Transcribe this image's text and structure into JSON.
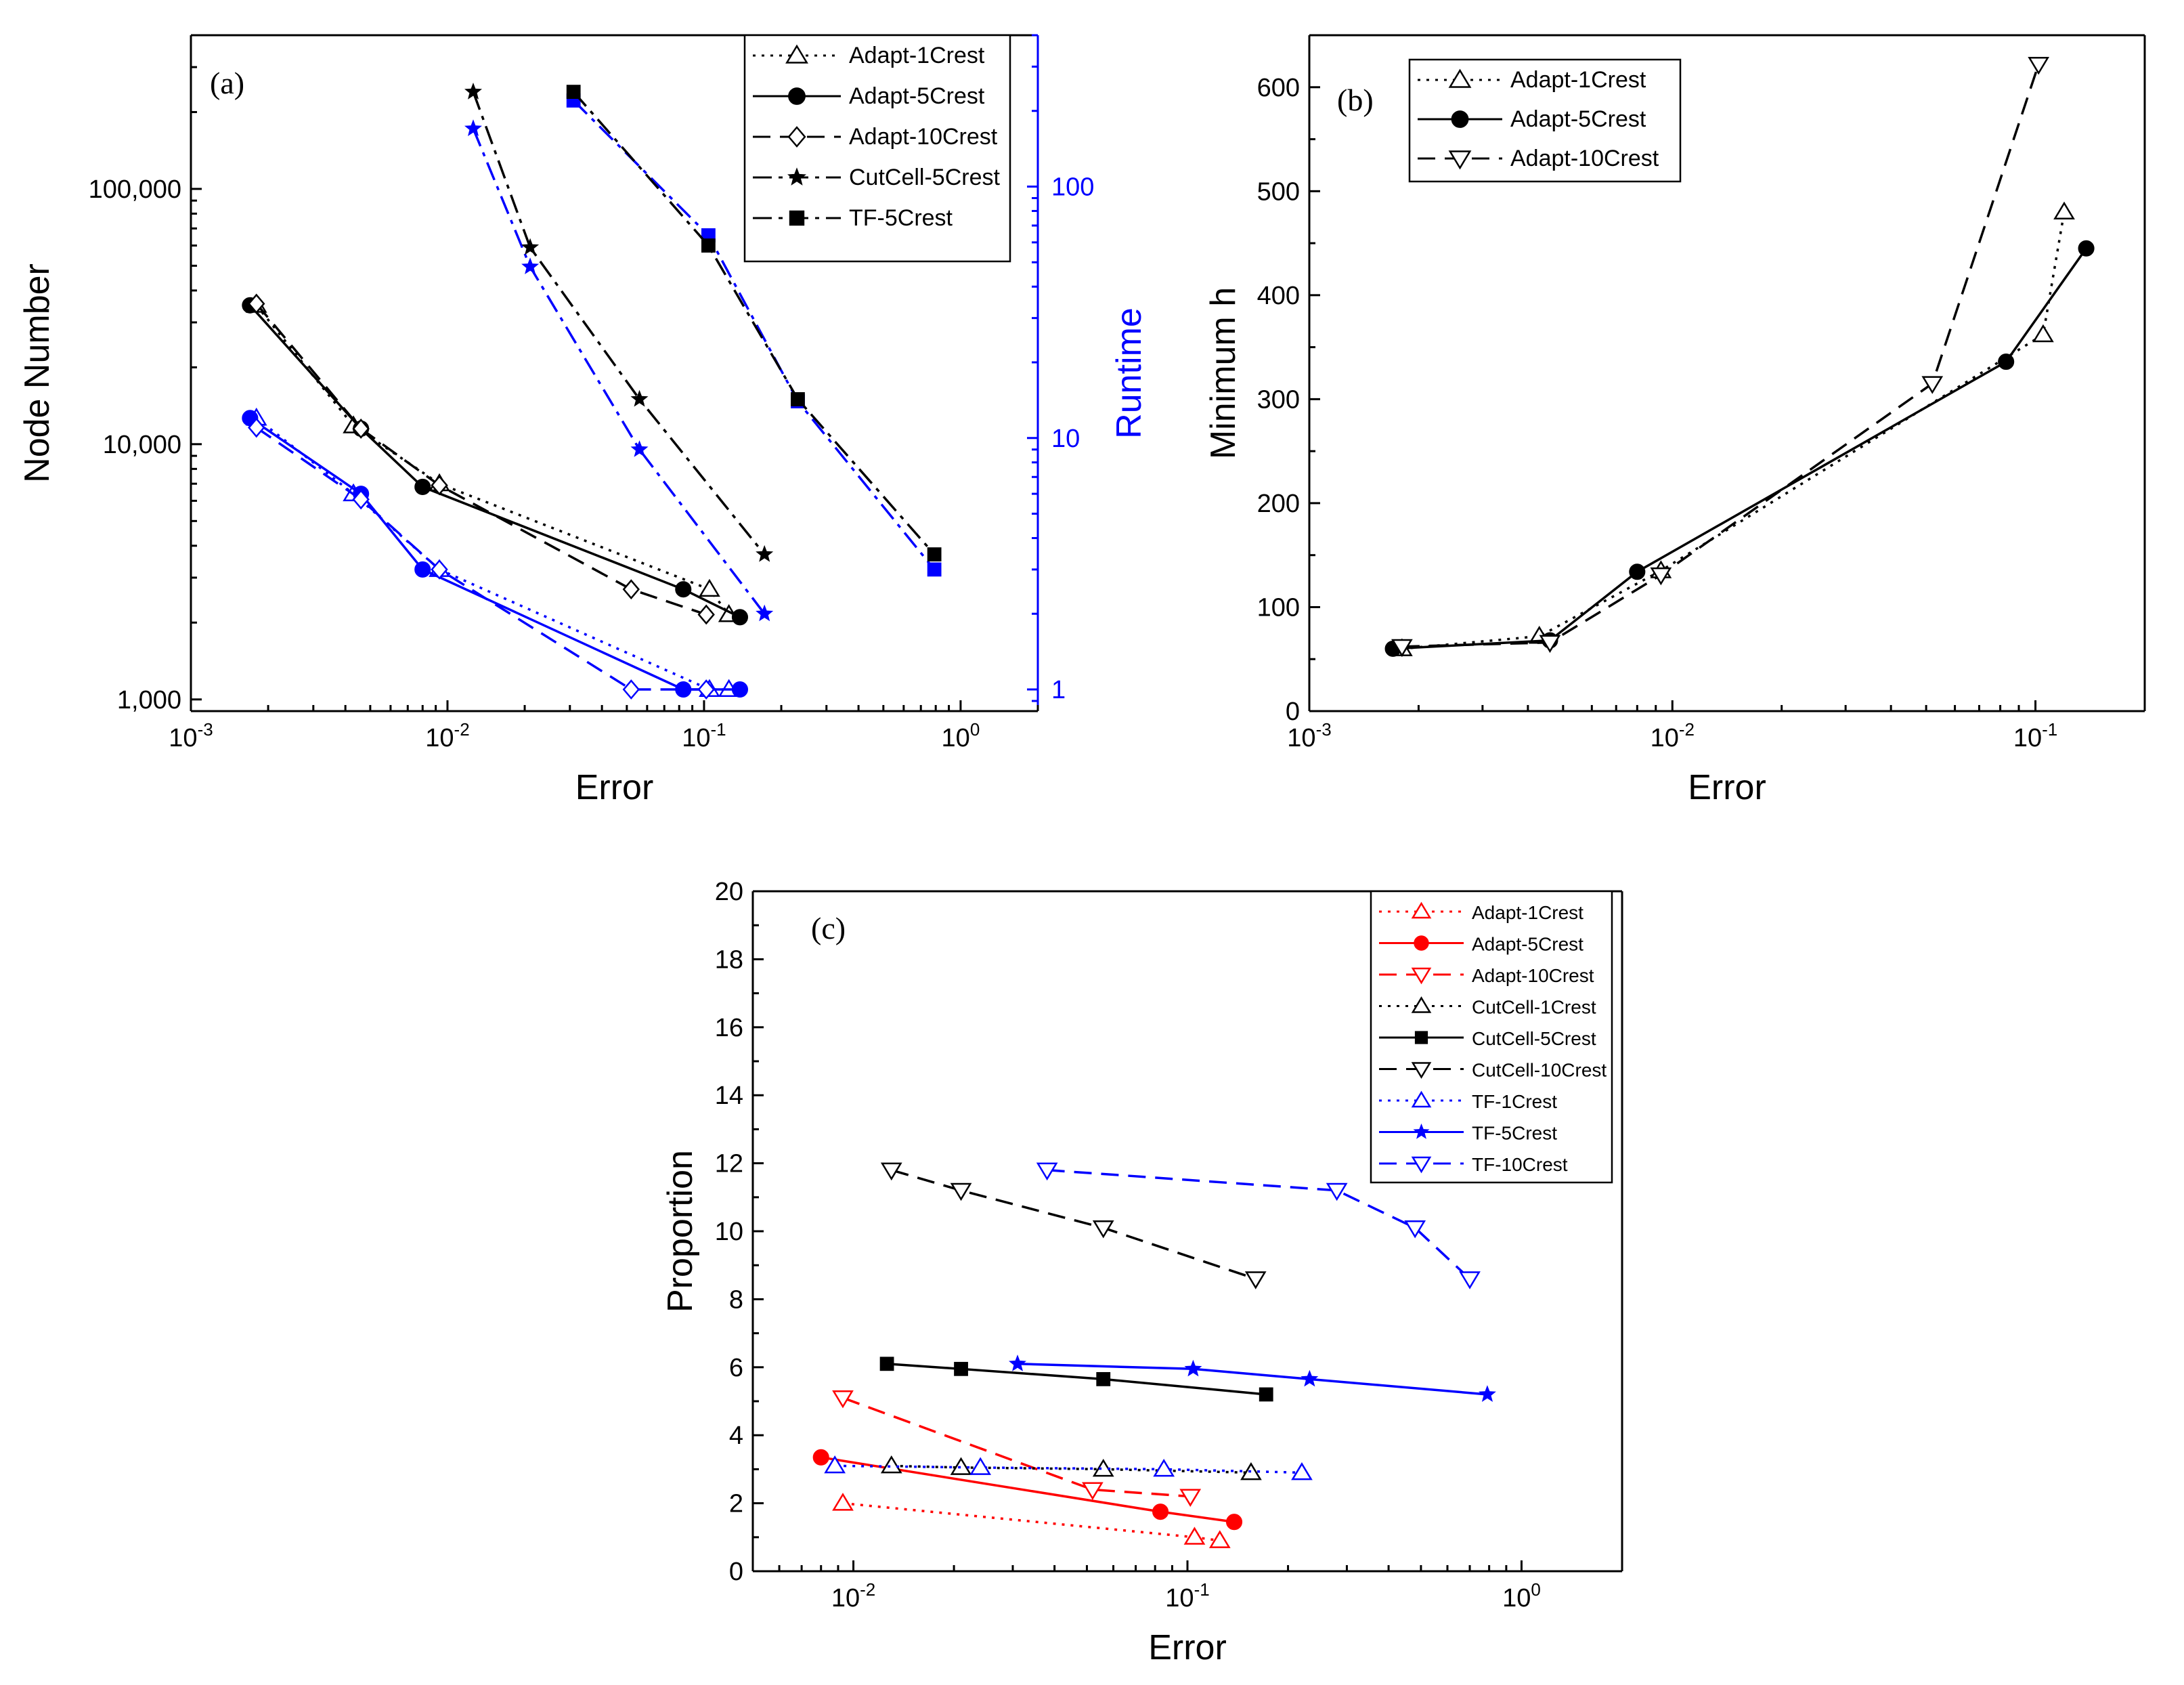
{
  "chart_data": [
    {
      "id": "a",
      "type": "line",
      "panel_label": "(a)",
      "xlabel": "Error",
      "ylabel": "Node Number",
      "y2label": "Runtime",
      "xscale": "log",
      "yscale": "log",
      "xlim": [
        0.001,
        2
      ],
      "ylim": [
        900,
        400000
      ],
      "y2lim": [
        0.82,
        400
      ],
      "x_ticks": [
        {
          "v": 0.001,
          "b": "10",
          "e": "-3"
        },
        {
          "v": 0.01,
          "b": "10",
          "e": "-2"
        },
        {
          "v": 0.1,
          "b": "10",
          "e": "-1"
        },
        {
          "v": 1,
          "b": "10",
          "e": "0"
        }
      ],
      "y_ticks": [
        {
          "v": 1000,
          "label": "1,000"
        },
        {
          "v": 10000,
          "label": "10,000"
        },
        {
          "v": 100000,
          "label": "100,000"
        }
      ],
      "y2_ticks": [
        {
          "v": 1,
          "label": "1"
        },
        {
          "v": 10,
          "label": "10"
        },
        {
          "v": 100,
          "label": "100"
        }
      ],
      "legend_position": "top-right",
      "series": [
        {
          "name": "Adapt-1Crest",
          "dash": "dot",
          "marker": "triangle-up-open",
          "x": [
            0.0018,
            0.0043,
            0.0093,
            0.105,
            0.125
          ],
          "y": [
            35000,
            11800,
            7000,
            2700,
            2150
          ]
        },
        {
          "name": "Adapt-5Crest",
          "dash": "solid",
          "marker": "circle-filled",
          "x": [
            0.0017,
            0.0046,
            0.008,
            0.083,
            0.138
          ],
          "y": [
            35000,
            11500,
            6800,
            2700,
            2100
          ]
        },
        {
          "name": "Adapt-10Crest",
          "dash": "dash",
          "marker": "diamond-open",
          "x": [
            0.0018,
            0.0046,
            0.0093,
            0.052,
            0.102
          ],
          "y": [
            35500,
            11500,
            6900,
            2700,
            2150
          ]
        },
        {
          "name": "CutCell-5Crest",
          "dash": "dashdot",
          "marker": "star-filled",
          "x": [
            0.0126,
            0.021,
            0.056,
            0.172
          ],
          "y": [
            240000,
            59000,
            15000,
            3700
          ]
        },
        {
          "name": "TF-5Crest",
          "dash": "dashdot",
          "marker": "square-filled",
          "x": [
            0.031,
            0.104,
            0.232,
            0.79
          ],
          "y": [
            240000,
            60000,
            15000,
            3700
          ]
        }
      ],
      "runtime_series": [
        {
          "name": "Adapt-1Crest",
          "dash": "dot",
          "marker": "triangle-up-open",
          "x": [
            0.0018,
            0.0043,
            0.0093,
            0.105,
            0.125
          ],
          "y": [
            12,
            6,
            3,
            1,
            1
          ]
        },
        {
          "name": "Adapt-5Crest",
          "dash": "solid",
          "marker": "circle-filled",
          "x": [
            0.0017,
            0.0046,
            0.008,
            0.083,
            0.138
          ],
          "y": [
            12,
            6,
            3,
            1,
            1
          ]
        },
        {
          "name": "Adapt-10Crest",
          "dash": "dash",
          "marker": "diamond-open",
          "x": [
            0.0018,
            0.0046,
            0.0093,
            0.052,
            0.102
          ],
          "y": [
            11,
            5.7,
            3,
            1,
            1
          ]
        },
        {
          "name": "CutCell-5Crest",
          "dash": "dashdot",
          "marker": "star-filled",
          "x": [
            0.0126,
            0.021,
            0.056,
            0.172
          ],
          "y": [
            170,
            48,
            9,
            2
          ]
        },
        {
          "name": "TF-5Crest",
          "dash": "dashdot",
          "marker": "square-filled",
          "x": [
            0.031,
            0.104,
            0.232,
            0.79
          ],
          "y": [
            220,
            64,
            14,
            3
          ]
        }
      ]
    },
    {
      "id": "b",
      "type": "line",
      "panel_label": "(b)",
      "xlabel": "Error",
      "ylabel": "Minimum h",
      "xscale": "log",
      "yscale": "linear",
      "xlim": [
        0.001,
        0.2
      ],
      "ylim": [
        0,
        650
      ],
      "x_ticks": [
        {
          "v": 0.001,
          "b": "10",
          "e": "-3"
        },
        {
          "v": 0.01,
          "b": "10",
          "e": "-2"
        },
        {
          "v": 0.1,
          "b": "10",
          "e": "-1"
        }
      ],
      "y_ticks": [
        {
          "v": 0,
          "label": "0"
        },
        {
          "v": 100,
          "label": "100"
        },
        {
          "v": 200,
          "label": "200"
        },
        {
          "v": 300,
          "label": "300"
        },
        {
          "v": 400,
          "label": "400"
        },
        {
          "v": 500,
          "label": "500"
        },
        {
          "v": 600,
          "label": "600"
        }
      ],
      "legend_position": "top-left",
      "series": [
        {
          "name": "Adapt-1Crest",
          "dash": "dot",
          "marker": "triangle-up-open",
          "x": [
            0.0018,
            0.0043,
            0.0093,
            0.105,
            0.12
          ],
          "y": [
            60,
            72,
            135,
            362,
            480
          ]
        },
        {
          "name": "Adapt-5Crest",
          "dash": "solid",
          "marker": "circle-filled",
          "x": [
            0.0017,
            0.0046,
            0.008,
            0.083,
            0.138
          ],
          "y": [
            60,
            68,
            134,
            336,
            445
          ]
        },
        {
          "name": "Adapt-10Crest",
          "dash": "dash",
          "marker": "triangle-down-open",
          "x": [
            0.0018,
            0.0046,
            0.0093,
            0.052,
            0.102
          ],
          "y": [
            62,
            66,
            131,
            315,
            622
          ]
        }
      ]
    },
    {
      "id": "c",
      "type": "line",
      "panel_label": "(c)",
      "xlabel": "Error",
      "ylabel": "Proportion",
      "xscale": "log",
      "yscale": "linear",
      "xlim": [
        0.005,
        2
      ],
      "ylim": [
        0,
        20
      ],
      "x_ticks": [
        {
          "v": 0.01,
          "b": "10",
          "e": "-2"
        },
        {
          "v": 0.1,
          "b": "10",
          "e": "-1"
        },
        {
          "v": 1,
          "b": "10",
          "e": "0"
        }
      ],
      "y_ticks": [
        {
          "v": 0,
          "label": "0"
        },
        {
          "v": 2,
          "label": "2"
        },
        {
          "v": 4,
          "label": "4"
        },
        {
          "v": 6,
          "label": "6"
        },
        {
          "v": 8,
          "label": "8"
        },
        {
          "v": 10,
          "label": "10"
        },
        {
          "v": 12,
          "label": "12"
        },
        {
          "v": 14,
          "label": "14"
        },
        {
          "v": 16,
          "label": "16"
        },
        {
          "v": 18,
          "label": "18"
        },
        {
          "v": 20,
          "label": "20"
        }
      ],
      "legend_position": "top-right",
      "series": [
        {
          "name": "Adapt-1Crest",
          "color": "#ff0000",
          "dash": "dot",
          "marker": "triangle-up-open",
          "x": [
            0.0093,
            0.105,
            0.125
          ],
          "y": [
            2.0,
            1.0,
            0.9
          ]
        },
        {
          "name": "Adapt-5Crest",
          "color": "#ff0000",
          "dash": "solid",
          "marker": "circle-filled",
          "x": [
            0.008,
            0.083,
            0.138
          ],
          "y": [
            3.35,
            1.75,
            1.45
          ]
        },
        {
          "name": "Adapt-10Crest",
          "color": "#ff0000",
          "dash": "dash",
          "marker": "triangle-down-open",
          "x": [
            0.0093,
            0.052,
            0.102
          ],
          "y": [
            5.1,
            2.4,
            2.2
          ]
        },
        {
          "name": "CutCell-1Crest",
          "color": "#000000",
          "dash": "dot",
          "marker": "triangle-up-open",
          "x": [
            0.013,
            0.021,
            0.056,
            0.155
          ],
          "y": [
            3.1,
            3.05,
            3.0,
            2.9
          ]
        },
        {
          "name": "CutCell-5Crest",
          "color": "#000000",
          "dash": "solid",
          "marker": "square-filled",
          "x": [
            0.0126,
            0.021,
            0.056,
            0.172
          ],
          "y": [
            6.1,
            5.95,
            5.65,
            5.2
          ]
        },
        {
          "name": "CutCell-10Crest",
          "color": "#000000",
          "dash": "dash",
          "marker": "triangle-down-open",
          "x": [
            0.013,
            0.021,
            0.056,
            0.16
          ],
          "y": [
            11.8,
            11.2,
            10.1,
            8.6
          ]
        },
        {
          "name": "TF-1Crest",
          "color": "#0000ff",
          "dash": "dot",
          "marker": "triangle-up-open",
          "x": [
            0.0088,
            0.024,
            0.085,
            0.22
          ],
          "y": [
            3.1,
            3.05,
            3.0,
            2.9
          ]
        },
        {
          "name": "TF-5Crest",
          "color": "#0000ff",
          "dash": "solid",
          "marker": "star-filled",
          "x": [
            0.031,
            0.104,
            0.232,
            0.79
          ],
          "y": [
            6.1,
            5.95,
            5.65,
            5.2
          ]
        },
        {
          "name": "TF-10Crest",
          "color": "#0000ff",
          "dash": "dash",
          "marker": "triangle-down-open",
          "x": [
            0.038,
            0.28,
            0.48,
            0.7
          ],
          "y": [
            11.8,
            11.2,
            10.1,
            8.6
          ]
        }
      ]
    }
  ],
  "colors": {
    "primary": "#000000",
    "runtime": "#0000ff",
    "red": "#ff0000",
    "blue": "#0000ff"
  }
}
